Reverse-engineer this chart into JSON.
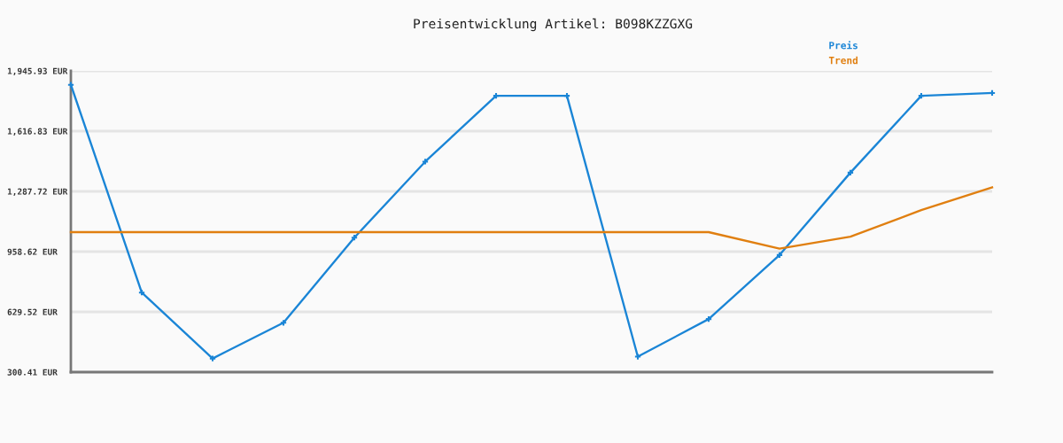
{
  "chart_data": {
    "type": "line",
    "title": "Preisentwicklung Artikel: B098KZZGXG",
    "categories": [
      null,
      null,
      null,
      null,
      null,
      null,
      null,
      null,
      null,
      null,
      null,
      null,
      null,
      null
    ],
    "series": [
      {
        "name": "Preis",
        "color": "#1a85d6",
        "marker": "cross",
        "values": [
          1870,
          735,
          375,
          570,
          1035,
          1450,
          1810,
          1810,
          385,
          590,
          940,
          1390,
          1810,
          1825
        ]
      },
      {
        "name": "Trend",
        "color": "#e07f10",
        "marker": "none",
        "values": [
          1065,
          1065,
          1065,
          1065,
          1065,
          1065,
          1065,
          1065,
          1065,
          1065,
          975,
          1040,
          1185,
          1310
        ]
      }
    ],
    "ylim": [
      300.41,
      1945.93
    ],
    "yticks": [
      {
        "value": 300.41,
        "label": "300.41 EUR"
      },
      {
        "value": 629.52,
        "label": "629.52 EUR"
      },
      {
        "value": 958.62,
        "label": "958.62 EUR"
      },
      {
        "value": 1287.72,
        "label": "1,287.72 EUR"
      },
      {
        "value": 1616.83,
        "label": "1,616.83 EUR"
      },
      {
        "value": 1945.93,
        "label": "1,945.93 EUR"
      }
    ],
    "grid": "y",
    "legend": "top right",
    "tick_labels": "y",
    "line_style": "solid"
  }
}
